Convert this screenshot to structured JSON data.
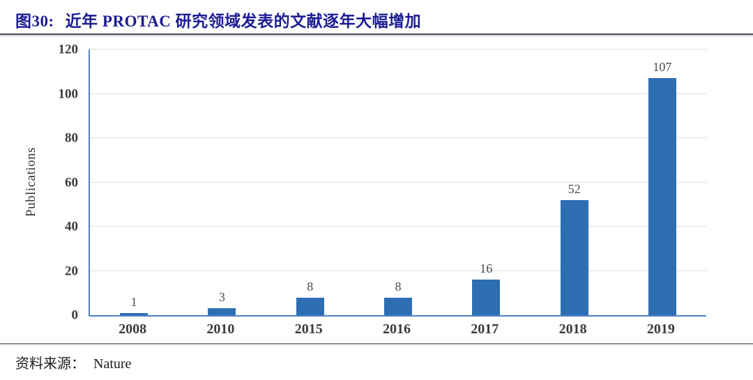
{
  "figure": {
    "label": "图30:",
    "title": "近年 PROTAC 研究领域发表的文献逐年大幅增加"
  },
  "source": {
    "prefix": "资料来源：",
    "name": "Nature"
  },
  "colors": {
    "title_navy": "#1c1c94",
    "title_rule_dark": "#52525e",
    "bar_blue": "#2e6eb2",
    "axis_blue": "#4f81c0",
    "gridline_gray": "#dadde2",
    "footer_rule_gray": "#8d8d92"
  },
  "chart_data": {
    "type": "bar",
    "categories": [
      "2008",
      "2010",
      "2015",
      "2016",
      "2017",
      "2018",
      "2019"
    ],
    "values": [
      1,
      3,
      8,
      8,
      16,
      52,
      107
    ],
    "title": "",
    "xlabel": "",
    "ylabel": "Publications",
    "ylim": [
      0,
      120
    ],
    "yticks": [
      0,
      20,
      40,
      60,
      80,
      100,
      120
    ],
    "grid": true,
    "legend": "none",
    "bar_color": "#2e6eb2"
  }
}
